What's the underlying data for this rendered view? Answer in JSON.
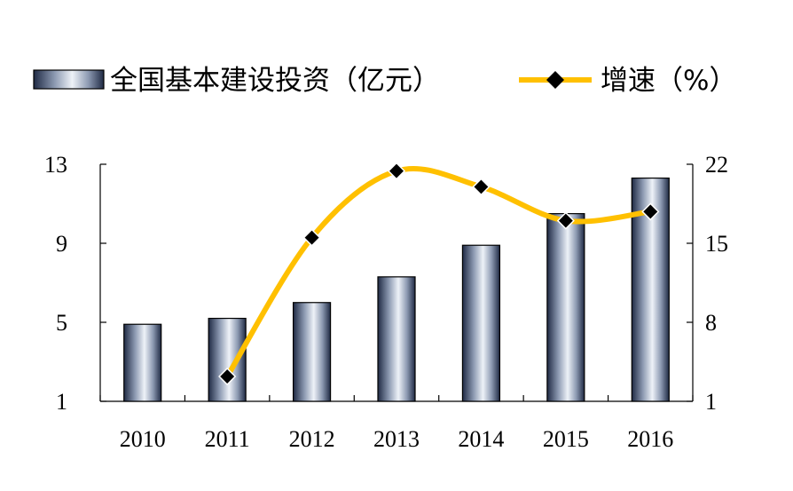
{
  "chart_data": {
    "type": "bar",
    "categories": [
      "2010",
      "2011",
      "2012",
      "2013",
      "2014",
      "2015",
      "2016"
    ],
    "series": [
      {
        "name": "全国基本建设投资（亿元）",
        "type": "bar",
        "axis": "left",
        "values": [
          4.9,
          5.2,
          6.0,
          7.3,
          8.9,
          10.5,
          12.3
        ]
      },
      {
        "name": "增速（%）",
        "type": "line",
        "axis": "right",
        "values": [
          null,
          3.2,
          15.5,
          21.4,
          20.0,
          17.0,
          17.8
        ]
      }
    ],
    "y_left": {
      "ticks": [
        "1",
        "5",
        "9",
        "13"
      ],
      "ylim": [
        1,
        13
      ]
    },
    "y_right": {
      "ticks": [
        "1",
        "8",
        "15",
        "22"
      ],
      "ylim": [
        1,
        22
      ]
    },
    "grid": false,
    "legend_position": "top",
    "colors": {
      "line": "#FFC000",
      "marker": "#000000",
      "bar_dark": "#1F2A44",
      "bar_light": "#E6ECF4"
    }
  }
}
